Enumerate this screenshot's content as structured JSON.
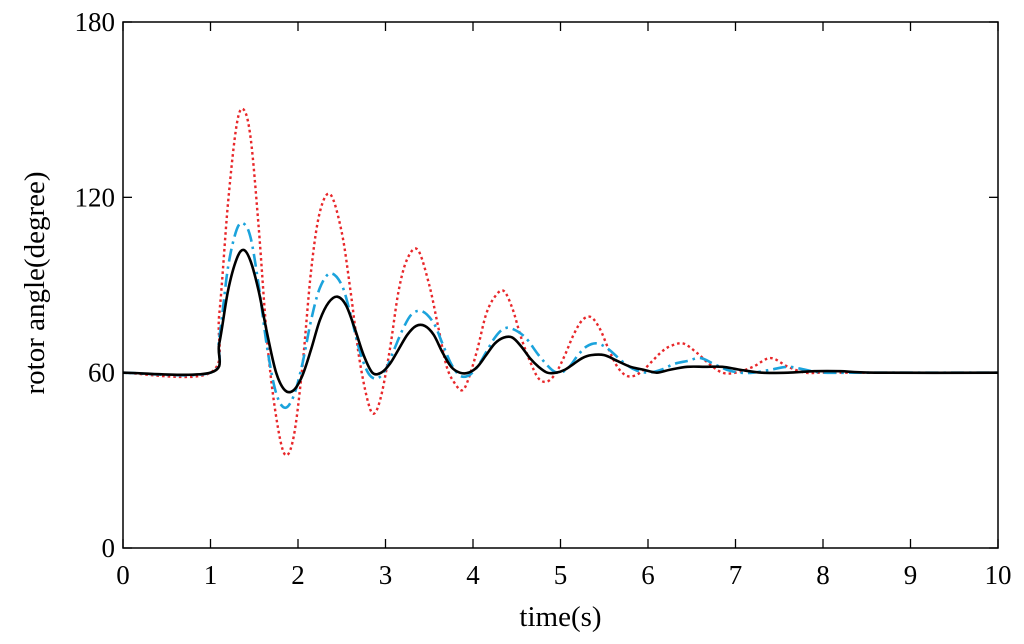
{
  "chart_data": {
    "type": "line",
    "xlabel": "time(s)",
    "ylabel": "rotor angle(degree)",
    "xlim": [
      0,
      10
    ],
    "ylim": [
      0,
      180
    ],
    "xticks": [
      0,
      1,
      2,
      3,
      4,
      5,
      6,
      7,
      8,
      9,
      10
    ],
    "yticks": [
      0,
      60,
      120,
      180
    ],
    "xtick_labels": [
      "0",
      "1",
      "2",
      "3",
      "4",
      "5",
      "6",
      "7",
      "8",
      "9",
      "10"
    ],
    "ytick_labels": [
      "0",
      "60",
      "120",
      "180"
    ],
    "grid": false,
    "legend": "none",
    "series": [
      {
        "color": "#e8272a",
        "style": "dotted",
        "x": [
          0,
          1.0,
          1.1,
          1.2,
          1.3,
          1.38,
          1.46,
          1.55,
          1.65,
          1.75,
          1.85,
          1.95,
          2.05,
          2.15,
          2.25,
          2.37,
          2.5,
          2.6,
          2.7,
          2.8,
          2.87,
          2.95,
          3.05,
          3.15,
          3.25,
          3.37,
          3.5,
          3.6,
          3.7,
          3.8,
          3.88,
          3.95,
          4.05,
          4.15,
          4.25,
          4.35,
          4.45,
          4.55,
          4.65,
          4.75,
          4.85,
          4.95,
          5.05,
          5.15,
          5.25,
          5.35,
          5.45,
          5.55,
          5.65,
          5.75,
          5.85,
          5.95,
          6.05,
          6.15,
          6.25,
          6.4,
          6.55,
          6.7,
          6.85,
          7.0,
          7.2,
          7.4,
          7.6,
          7.8,
          8.0,
          8.5,
          9.0,
          10.0
        ],
        "y": [
          60,
          60,
          80,
          118,
          145,
          150,
          140,
          110,
          70,
          45,
          32,
          38,
          62,
          95,
          115,
          121,
          108,
          88,
          65,
          50,
          46,
          52,
          68,
          88,
          99,
          102,
          90,
          76,
          62,
          56,
          54,
          58,
          68,
          80,
          86,
          88,
          82,
          72,
          64,
          58,
          57,
          60,
          66,
          73,
          78,
          79,
          75,
          68,
          62,
          59,
          59,
          61,
          64,
          67,
          69,
          70,
          67,
          63,
          60,
          60,
          62,
          65,
          62,
          60,
          60,
          60,
          60,
          60
        ]
      },
      {
        "color": "#1ba3dc",
        "style": "dash-dot",
        "x": [
          0,
          1.0,
          1.1,
          1.2,
          1.3,
          1.38,
          1.46,
          1.55,
          1.65,
          1.75,
          1.85,
          1.95,
          2.05,
          2.15,
          2.25,
          2.37,
          2.5,
          2.6,
          2.7,
          2.8,
          2.9,
          3.0,
          3.1,
          3.2,
          3.3,
          3.42,
          3.55,
          3.65,
          3.75,
          3.85,
          3.95,
          4.05,
          4.15,
          4.25,
          4.35,
          4.45,
          4.6,
          4.75,
          4.9,
          5.0,
          5.1,
          5.2,
          5.3,
          5.42,
          5.55,
          5.7,
          5.85,
          6.0,
          6.15,
          6.3,
          6.45,
          6.6,
          6.75,
          6.9,
          7.05,
          7.2,
          7.4,
          7.6,
          7.8,
          8.0,
          8.5,
          10.0
        ],
        "y": [
          60,
          60,
          72,
          96,
          109,
          111,
          106,
          90,
          68,
          53,
          48,
          52,
          63,
          78,
          89,
          94,
          90,
          80,
          68,
          60,
          58,
          61,
          68,
          75,
          80,
          81,
          77,
          70,
          63,
          59,
          59,
          62,
          67,
          72,
          75,
          75,
          72,
          66,
          61,
          60,
          62,
          66,
          69,
          70,
          68,
          64,
          61,
          60,
          61,
          63,
          64,
          65,
          63,
          61,
          60,
          60,
          61,
          62,
          61,
          60,
          60,
          60
        ]
      },
      {
        "color": "#000000",
        "style": "solid",
        "x": [
          0,
          1.0,
          1.1,
          1.2,
          1.3,
          1.38,
          1.46,
          1.55,
          1.65,
          1.75,
          1.85,
          1.95,
          2.05,
          2.15,
          2.25,
          2.35,
          2.45,
          2.55,
          2.65,
          2.75,
          2.85,
          2.95,
          3.05,
          3.15,
          3.25,
          3.35,
          3.45,
          3.55,
          3.65,
          3.75,
          3.85,
          3.95,
          4.05,
          4.15,
          4.25,
          4.35,
          4.45,
          4.55,
          4.65,
          4.75,
          4.85,
          4.95,
          5.05,
          5.15,
          5.25,
          5.35,
          5.5,
          5.65,
          5.8,
          5.95,
          6.1,
          6.25,
          6.45,
          6.65,
          6.85,
          7.05,
          7.3,
          7.6,
          7.9,
          8.2,
          8.6,
          10.0
        ],
        "y": [
          60,
          60,
          70,
          88,
          99,
          102,
          98,
          88,
          73,
          60,
          54,
          54,
          59,
          68,
          78,
          84,
          86,
          83,
          75,
          66,
          60,
          60,
          63,
          68,
          73,
          76,
          76,
          73,
          67,
          62,
          60,
          60,
          62,
          66,
          70,
          72,
          72,
          69,
          65,
          62,
          60,
          60,
          61,
          63,
          65,
          66,
          66,
          64,
          62,
          61,
          60,
          61,
          62,
          62,
          62,
          61,
          60,
          60,
          60.5,
          60.5,
          60,
          60
        ]
      }
    ]
  }
}
